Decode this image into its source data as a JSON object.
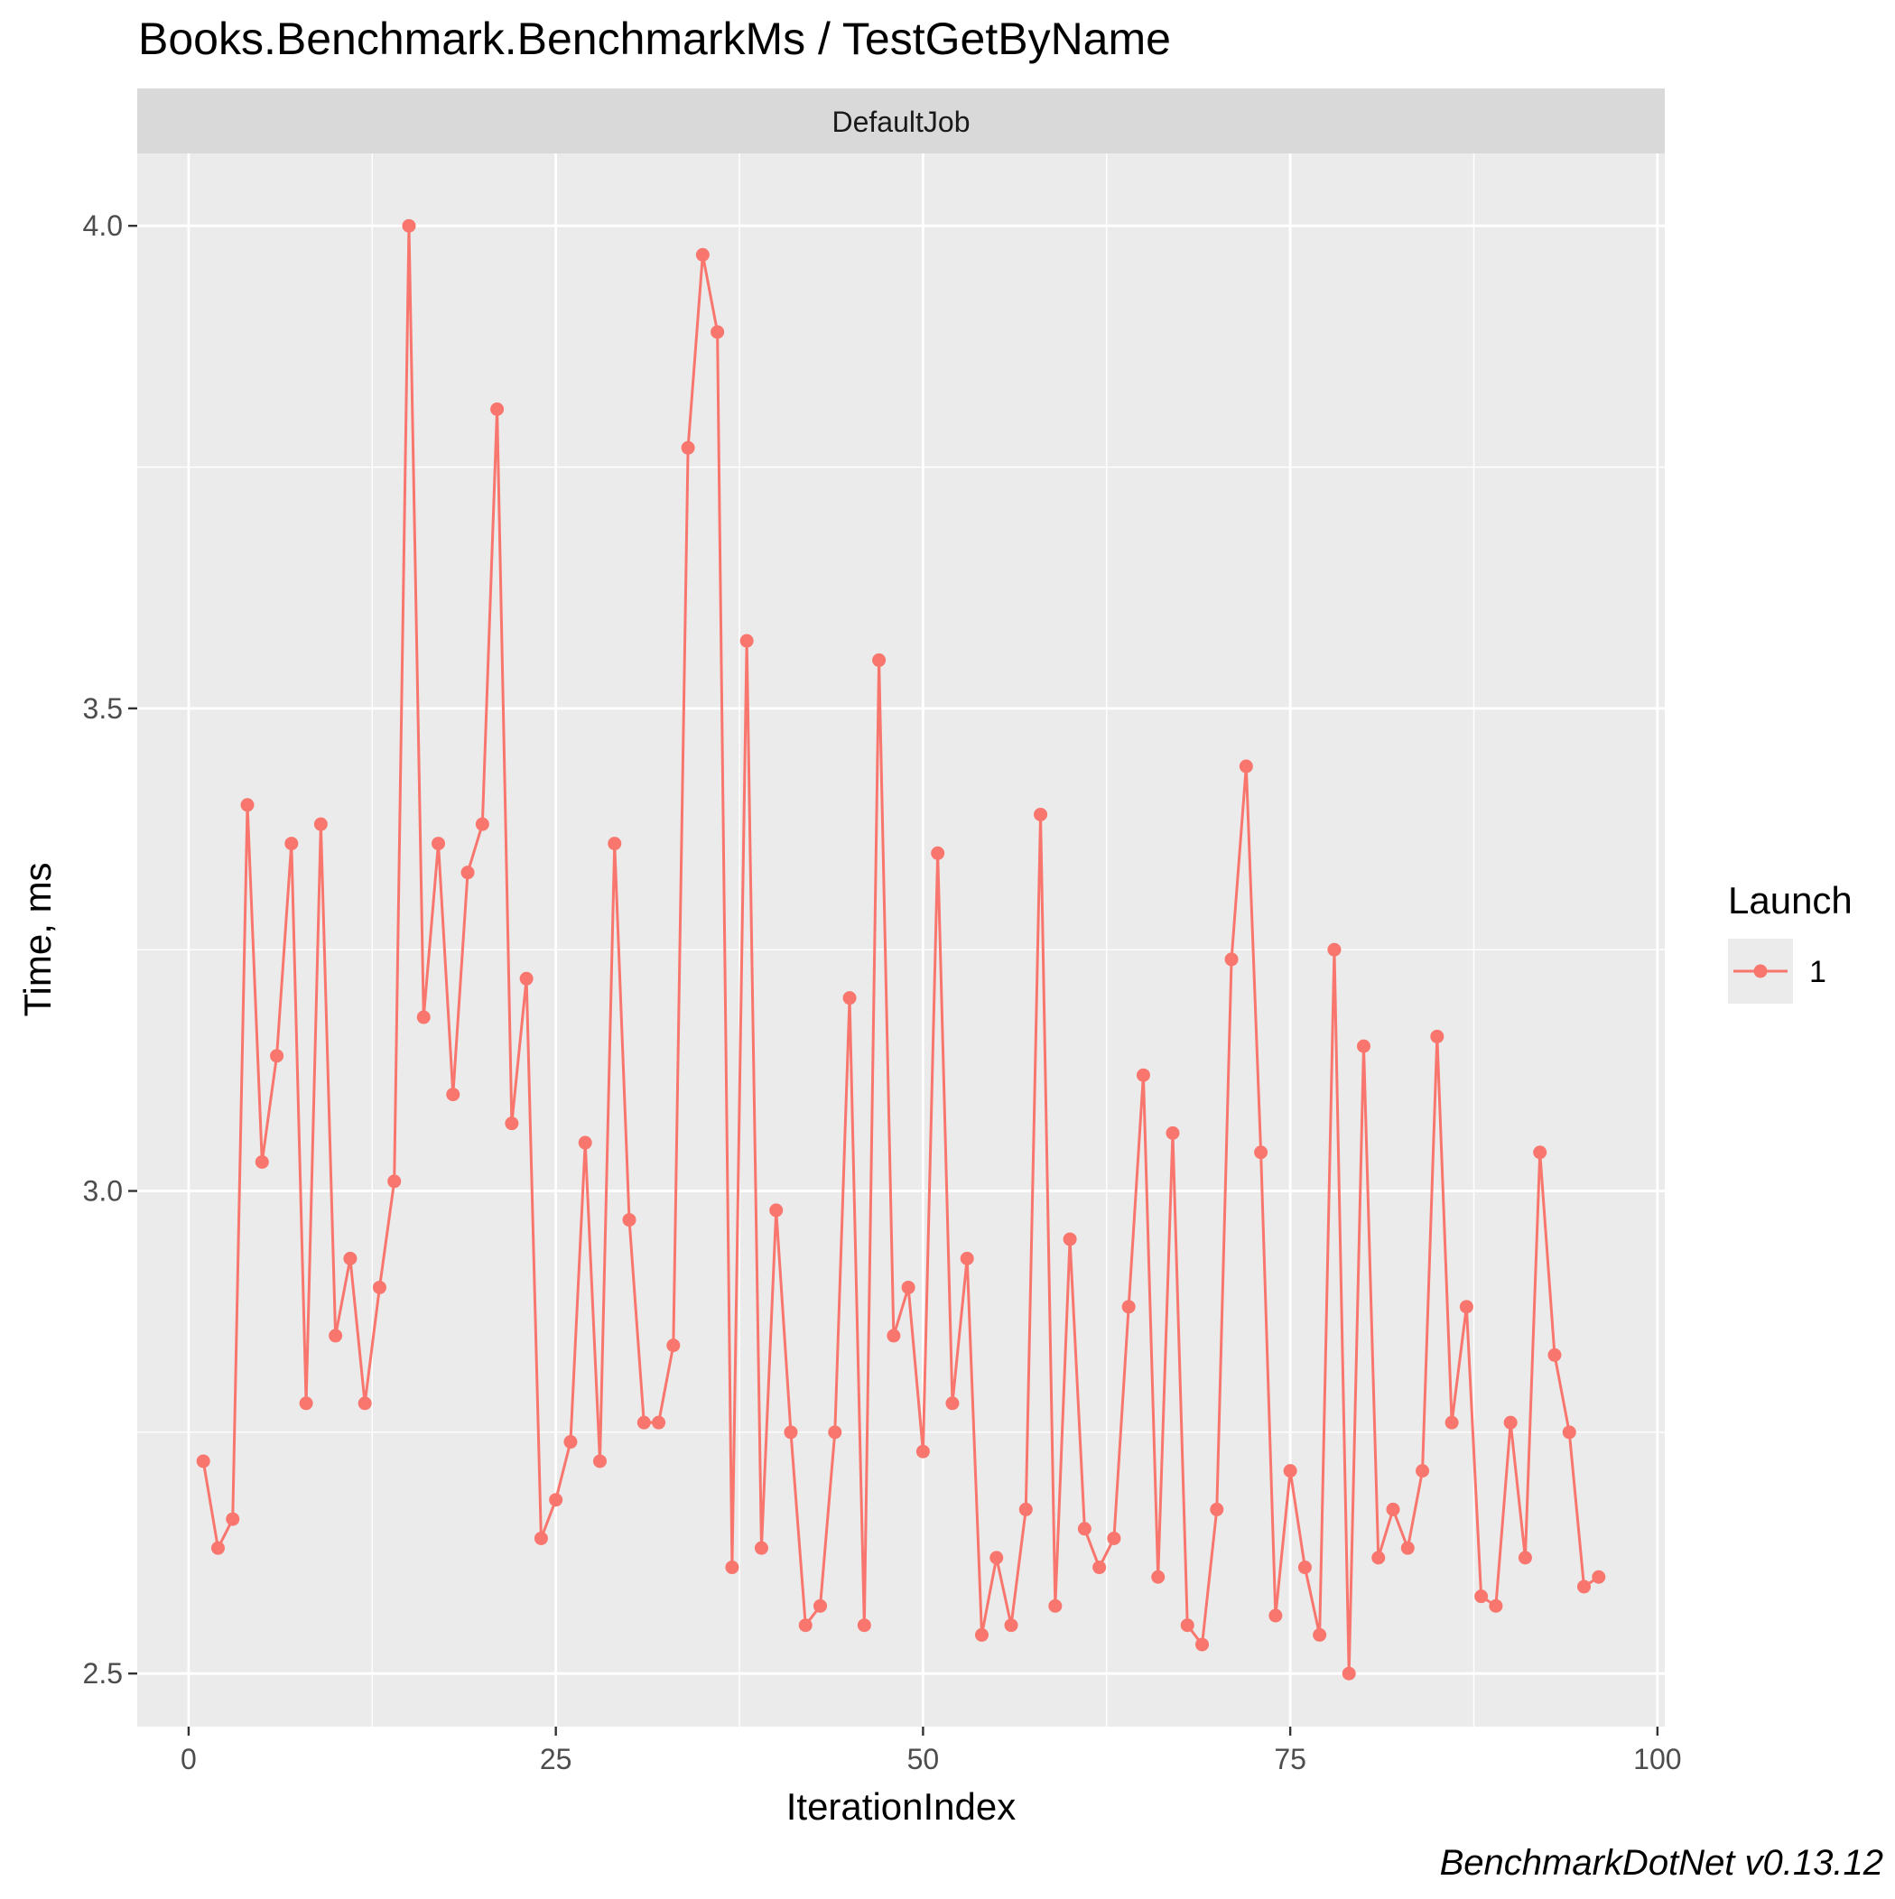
{
  "chart_data": {
    "type": "line",
    "title": "Books.Benchmark.BenchmarkMs / TestGetByName",
    "facet_label": "DefaultJob",
    "xlabel": "IterationIndex",
    "ylabel": "Time, ms",
    "xlim": [
      -3.5,
      100.5
    ],
    "ylim": [
      2.445,
      4.075
    ],
    "x_ticks": [
      0,
      25,
      50,
      75,
      100
    ],
    "x_tick_labels": [
      "0",
      "25",
      "50",
      "75",
      "100"
    ],
    "y_ticks": [
      2.5,
      3.0,
      3.5,
      4.0
    ],
    "y_tick_labels": [
      "2.5",
      "3.0",
      "3.5",
      "4.0"
    ],
    "grid": true,
    "legend": {
      "title": "Launch",
      "position": "right"
    },
    "footer": "BenchmarkDotNet v0.13.12",
    "series": [
      {
        "name": "1",
        "color": "#F8766D",
        "x": [
          1,
          2,
          3,
          4,
          5,
          6,
          7,
          8,
          9,
          10,
          11,
          12,
          13,
          14,
          15,
          16,
          17,
          18,
          19,
          20,
          21,
          22,
          23,
          24,
          25,
          26,
          27,
          28,
          29,
          30,
          31,
          32,
          33,
          34,
          35,
          36,
          37,
          38,
          39,
          40,
          41,
          42,
          43,
          44,
          45,
          46,
          47,
          48,
          49,
          50,
          51,
          52,
          53,
          54,
          55,
          56,
          57,
          58,
          59,
          60,
          61,
          62,
          63,
          64,
          65,
          66,
          67,
          68,
          69,
          70,
          71,
          72,
          73,
          74,
          75,
          76,
          77,
          78,
          79,
          80,
          81,
          82,
          83,
          84,
          85,
          86,
          87,
          88,
          89,
          90,
          91,
          92,
          93,
          94,
          95,
          96
        ],
        "values": [
          2.72,
          2.63,
          2.66,
          3.4,
          3.03,
          3.14,
          3.36,
          2.78,
          3.38,
          2.85,
          2.93,
          2.78,
          2.9,
          3.01,
          4.0,
          3.18,
          3.36,
          3.1,
          3.33,
          3.38,
          3.81,
          3.07,
          3.22,
          2.64,
          2.68,
          2.74,
          3.05,
          2.72,
          3.36,
          2.97,
          2.76,
          2.76,
          2.84,
          3.77,
          3.97,
          3.89,
          2.61,
          3.57,
          2.63,
          2.98,
          2.75,
          2.55,
          2.57,
          2.75,
          3.2,
          2.55,
          3.55,
          2.85,
          2.9,
          2.73,
          3.35,
          2.78,
          2.93,
          2.54,
          2.62,
          2.55,
          2.67,
          3.39,
          2.57,
          2.95,
          2.65,
          2.61,
          2.64,
          2.88,
          3.12,
          2.6,
          3.06,
          2.55,
          2.53,
          2.67,
          3.24,
          3.44,
          3.04,
          2.56,
          2.71,
          2.61,
          2.54,
          3.25,
          2.5,
          3.15,
          2.62,
          2.67,
          2.63,
          2.71,
          3.16,
          2.76,
          2.88,
          2.58,
          2.57,
          2.76,
          2.62,
          3.04,
          2.83,
          2.75,
          2.59,
          2.6
        ]
      }
    ]
  }
}
